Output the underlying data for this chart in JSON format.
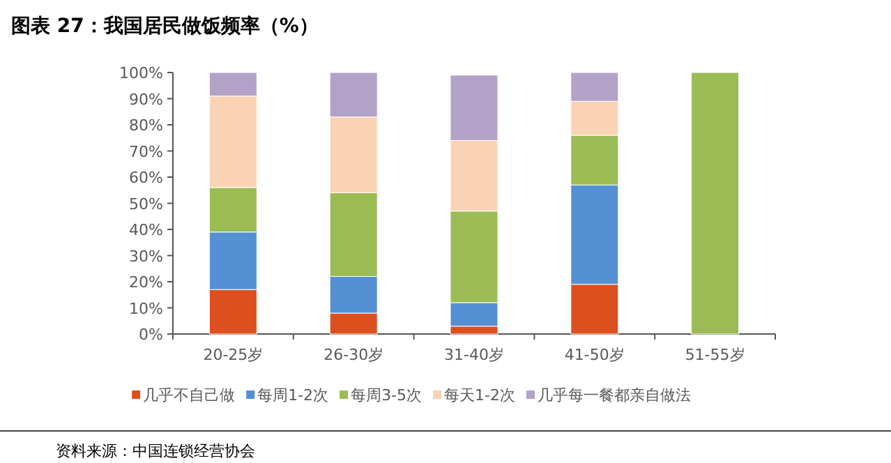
{
  "chart_data": {
    "type": "bar",
    "stacked": true,
    "title": "图表 27：我国居民做饭频率（%）",
    "annotations": [
      "资料来源：中国连锁经营协会"
    ],
    "categories": [
      "20-25岁",
      "26-30岁",
      "31-40岁",
      "41-50岁",
      "51-55岁"
    ],
    "series": [
      {
        "name": "几乎不自己做",
        "color": "#dd4f1e",
        "values": [
          17,
          8,
          3,
          19,
          0
        ]
      },
      {
        "name": "每周1-2次",
        "color": "#5590d4",
        "values": [
          22,
          14,
          9,
          38,
          0
        ]
      },
      {
        "name": "每周3-5次",
        "color": "#9bbb55",
        "values": [
          17,
          32,
          35,
          19,
          100
        ]
      },
      {
        "name": "每天1-2次",
        "color": "#fad3b5",
        "values": [
          35,
          29,
          27,
          13,
          0
        ]
      },
      {
        "name": "几乎每一餐都亲自做法",
        "color": "#b3a2c7",
        "values": [
          9,
          17,
          25,
          11,
          0
        ]
      }
    ],
    "ylim": [
      0,
      100
    ],
    "yticks": [
      {
        "value": 0,
        "label": "0%"
      },
      {
        "value": 10,
        "label": "10%"
      },
      {
        "value": 20,
        "label": "20%"
      },
      {
        "value": 30,
        "label": "30%"
      },
      {
        "value": 40,
        "label": "40%"
      },
      {
        "value": 50,
        "label": "50%"
      },
      {
        "value": 60,
        "label": "60%"
      },
      {
        "value": 70,
        "label": "70%"
      },
      {
        "value": 80,
        "label": "80%"
      },
      {
        "value": 90,
        "label": "90%"
      },
      {
        "value": 100,
        "label": "100%"
      }
    ],
    "legend": "bottom"
  }
}
